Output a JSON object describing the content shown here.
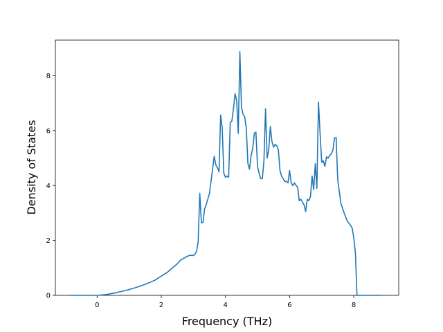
{
  "chart_data": {
    "type": "line",
    "title": "",
    "xlabel": "Frequency (THz)",
    "ylabel": "Density of States",
    "xlim": [
      -1.3,
      9.4
    ],
    "ylim": [
      0,
      9.3
    ],
    "xticks": [
      0,
      2,
      4,
      6,
      8
    ],
    "yticks": [
      0,
      2,
      4,
      6,
      8
    ],
    "grid": false,
    "line_color": "#1f77b4",
    "series": [
      {
        "x": [
          -0.85,
          -0.4,
          0.0,
          0.3,
          0.6,
          0.9,
          1.2,
          1.5,
          1.8,
          2.0,
          2.2,
          2.4,
          2.5,
          2.6,
          2.7,
          2.75,
          2.8,
          2.9,
          3.0,
          3.05,
          3.1,
          3.15,
          3.2,
          3.25,
          3.3,
          3.35,
          3.4,
          3.5,
          3.6,
          3.65,
          3.7,
          3.75,
          3.8,
          3.85,
          3.9,
          3.95,
          4.0,
          4.05,
          4.1,
          4.15,
          4.2,
          4.25,
          4.3,
          4.35,
          4.4,
          4.45,
          4.5,
          4.55,
          4.6,
          4.65,
          4.7,
          4.75,
          4.8,
          4.85,
          4.9,
          4.95,
          5.0,
          5.05,
          5.1,
          5.15,
          5.2,
          5.25,
          5.3,
          5.35,
          5.4,
          5.45,
          5.5,
          5.55,
          5.6,
          5.65,
          5.7,
          5.75,
          5.8,
          5.85,
          5.9,
          5.95,
          6.0,
          6.05,
          6.1,
          6.15,
          6.2,
          6.25,
          6.3,
          6.35,
          6.4,
          6.45,
          6.5,
          6.55,
          6.6,
          6.65,
          6.7,
          6.75,
          6.8,
          6.85,
          6.9,
          6.95,
          7.0,
          7.05,
          7.1,
          7.15,
          7.2,
          7.25,
          7.3,
          7.35,
          7.4,
          7.45,
          7.5,
          7.6,
          7.7,
          7.8,
          7.9,
          7.95,
          8.0,
          8.05,
          8.1,
          8.5,
          8.85
        ],
        "y": [
          0.0,
          0.0,
          0.0,
          0.03,
          0.1,
          0.18,
          0.28,
          0.4,
          0.55,
          0.7,
          0.85,
          1.05,
          1.15,
          1.28,
          1.35,
          1.38,
          1.42,
          1.46,
          1.45,
          1.5,
          1.6,
          1.95,
          3.72,
          2.65,
          2.65,
          3.15,
          3.3,
          3.7,
          4.6,
          5.07,
          4.75,
          4.65,
          4.5,
          6.57,
          6.1,
          4.45,
          4.3,
          4.35,
          4.3,
          6.3,
          6.35,
          6.8,
          7.35,
          7.1,
          5.9,
          8.88,
          6.85,
          6.6,
          6.5,
          6.1,
          4.8,
          4.6,
          5.1,
          5.35,
          5.9,
          5.95,
          4.7,
          4.45,
          4.25,
          4.25,
          4.9,
          6.8,
          5.0,
          5.3,
          6.15,
          5.6,
          5.4,
          5.5,
          5.45,
          5.3,
          4.55,
          4.35,
          4.25,
          4.15,
          4.15,
          4.1,
          4.55,
          4.1,
          4.0,
          4.1,
          4.0,
          3.95,
          3.45,
          3.5,
          3.4,
          3.3,
          3.05,
          3.5,
          3.45,
          3.6,
          4.35,
          3.85,
          4.8,
          3.9,
          7.05,
          5.9,
          4.85,
          4.9,
          4.7,
          5.05,
          5.0,
          5.1,
          5.15,
          5.3,
          5.73,
          5.75,
          4.2,
          3.35,
          3.0,
          2.7,
          2.55,
          2.45,
          2.1,
          1.55,
          0.0,
          0.0,
          0.0
        ]
      }
    ]
  }
}
